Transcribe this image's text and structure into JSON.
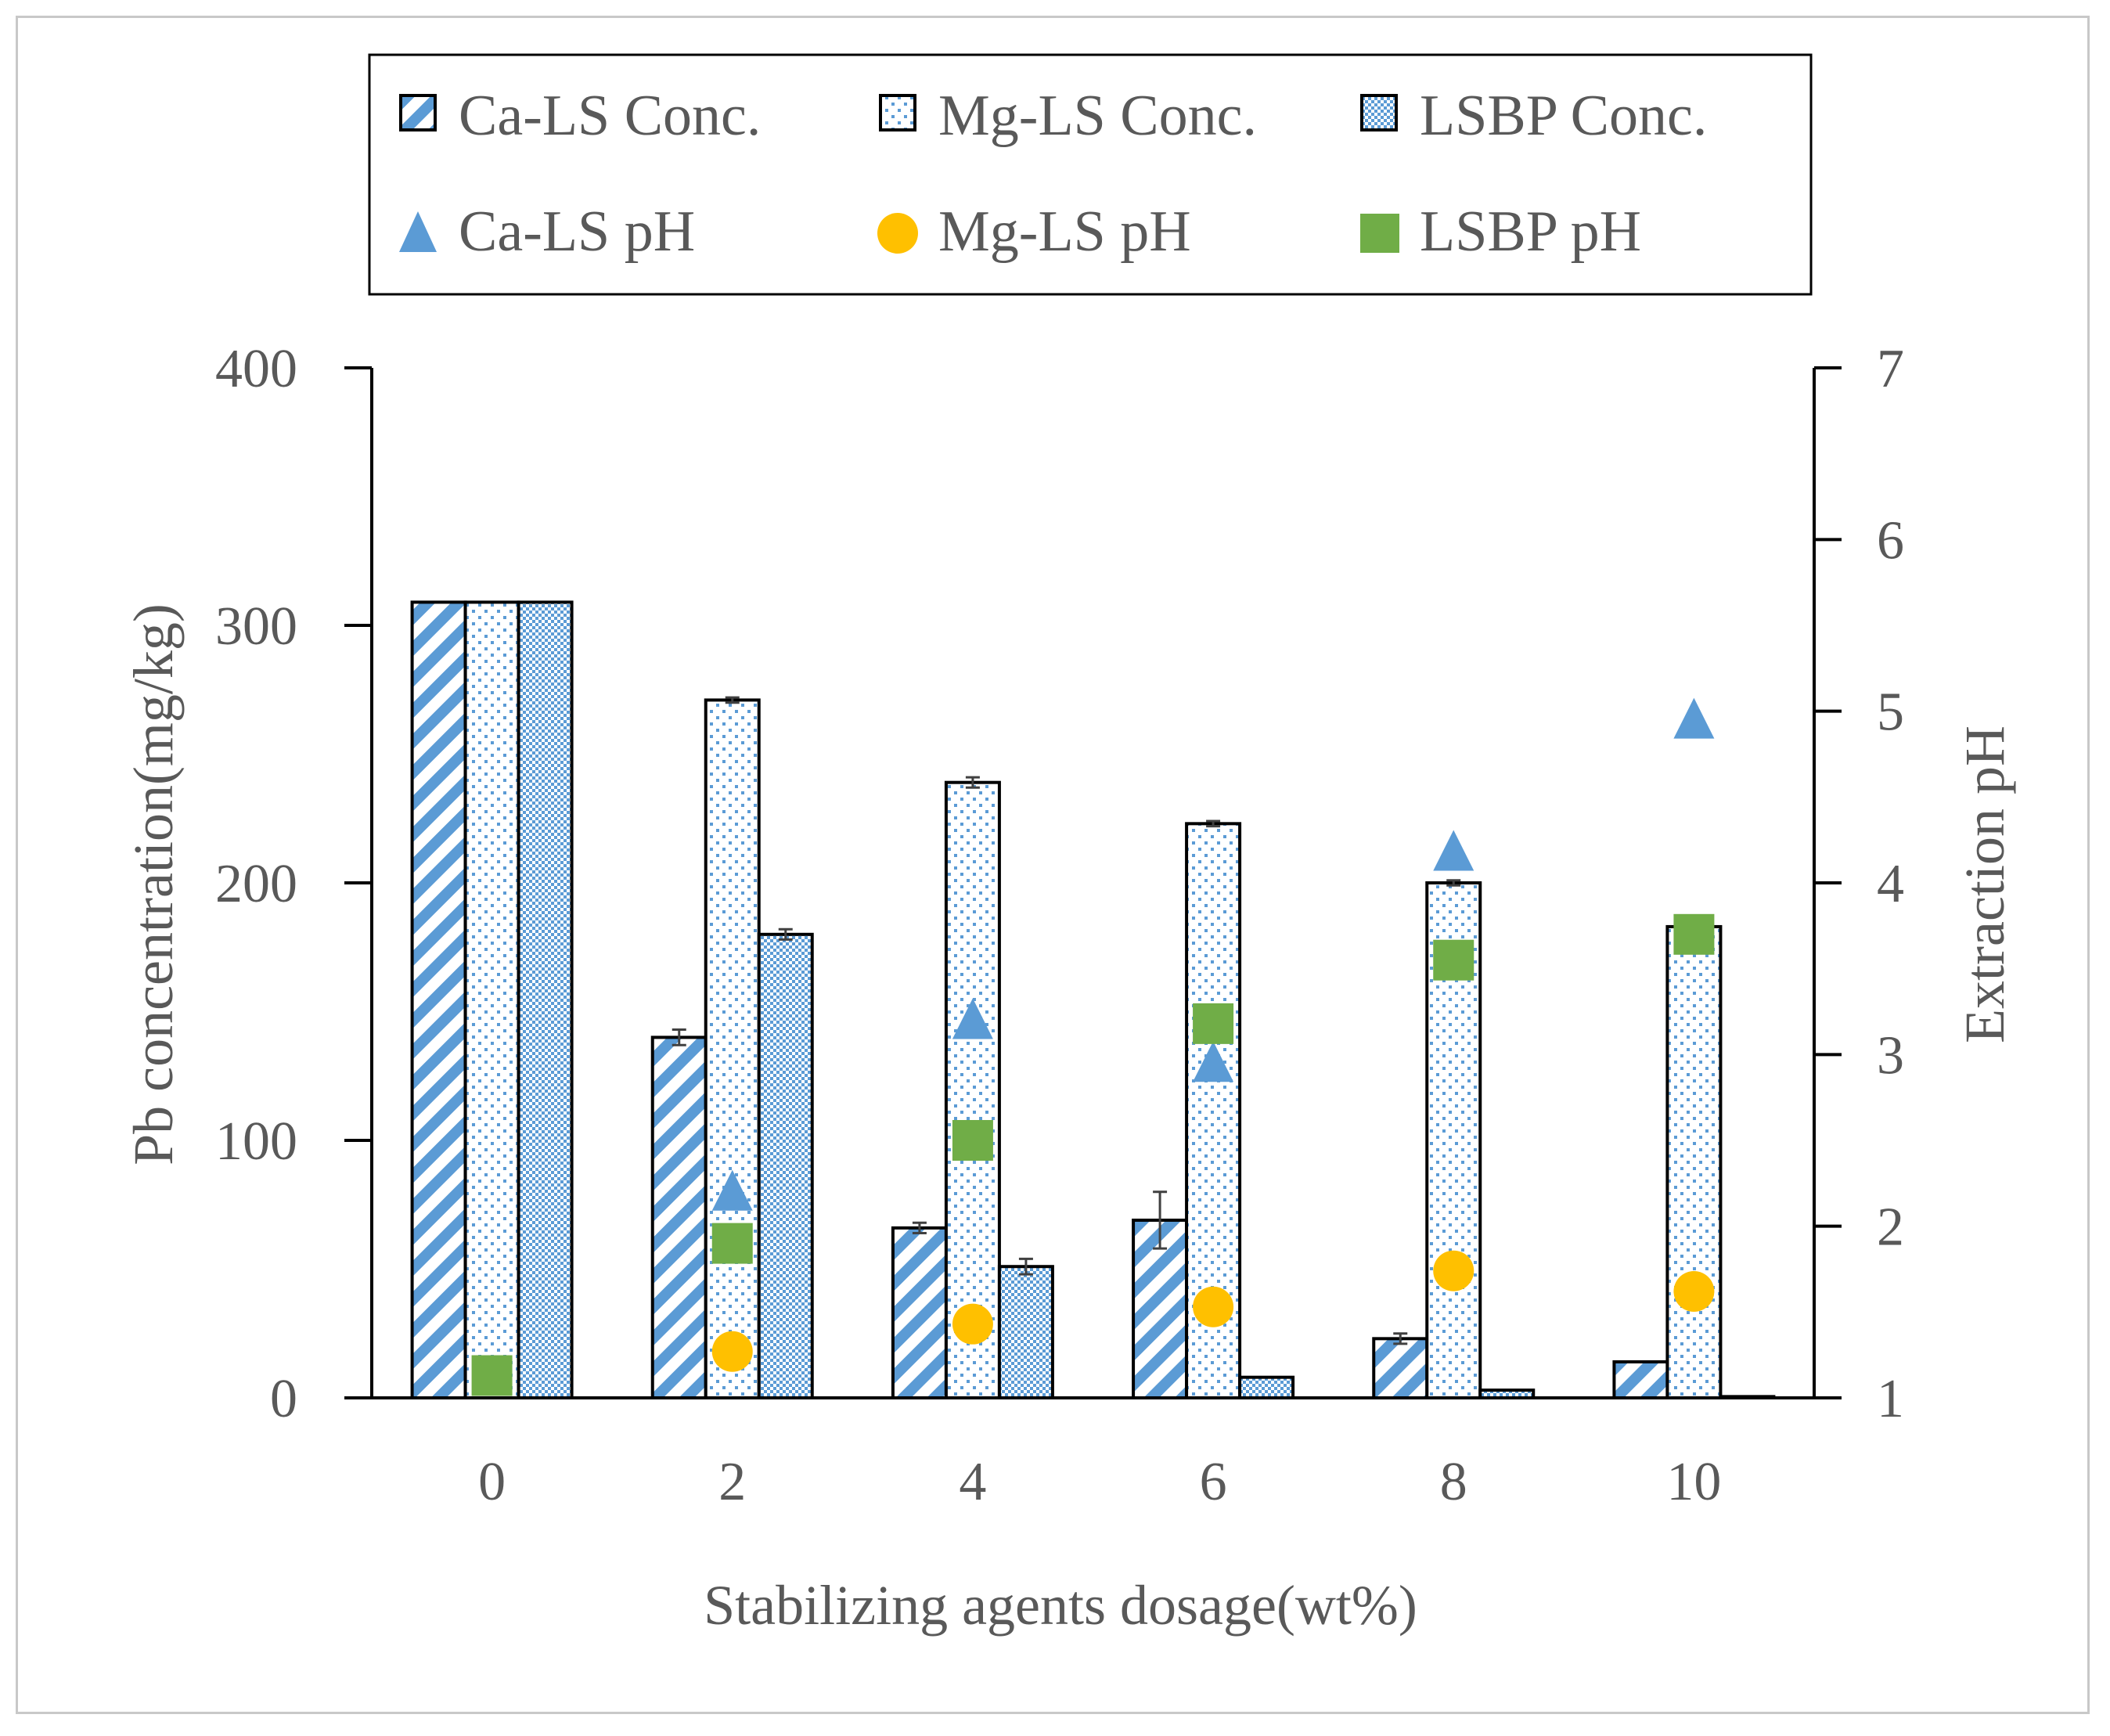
{
  "chart_data": {
    "type": "bar",
    "title": "",
    "xlabel": "Stabilizing agents dosage(wt%)",
    "ylabel": "Pb concentration(mg/kg)",
    "y2label": "Extraction pH",
    "categories": [
      "0",
      "2",
      "4",
      "6",
      "8",
      "10"
    ],
    "ylim": [
      0,
      400
    ],
    "yticks": [
      "0",
      "100",
      "200",
      "300",
      "400"
    ],
    "y2lim": [
      1,
      7
    ],
    "y2ticks": [
      "1",
      "2",
      "3",
      "4",
      "5",
      "6",
      "7"
    ],
    "legend_position": "top",
    "bar_series": [
      {
        "name": "Ca-LS Conc.",
        "pattern": "diagonal",
        "values": [
          309,
          140,
          66,
          69,
          23,
          14
        ],
        "errors": [
          0,
          3,
          2,
          11,
          2,
          0
        ]
      },
      {
        "name": "Mg-LS Conc.",
        "pattern": "dots",
        "values": [
          309,
          271,
          239,
          223,
          200,
          183
        ],
        "errors": [
          0,
          1,
          2,
          1,
          1,
          1
        ]
      },
      {
        "name": "LSBP Conc.",
        "pattern": "checker",
        "values": [
          309,
          180,
          51,
          8,
          3,
          0.5
        ],
        "errors": [
          0,
          2,
          3,
          0,
          0,
          0
        ]
      }
    ],
    "ph_series": [
      {
        "name": "Ca-LS pH",
        "marker": "triangle",
        "color": "#5B9BD5",
        "x": [
          2,
          4,
          6,
          8,
          10
        ],
        "values": [
          2.2,
          3.2,
          2.95,
          4.18,
          4.95
        ]
      },
      {
        "name": "Mg-LS pH",
        "marker": "circle",
        "color": "#FFC000",
        "x": [
          2,
          4,
          6,
          8,
          10
        ],
        "values": [
          1.27,
          1.43,
          1.53,
          1.74,
          1.62
        ]
      },
      {
        "name": "LSBP pH",
        "marker": "square",
        "color": "#70AD47",
        "x": [
          0,
          2,
          4,
          6,
          8,
          10
        ],
        "values": [
          1.13,
          1.9,
          2.5,
          3.18,
          3.55,
          3.7
        ]
      }
    ],
    "legend": [
      "Ca-LS Conc.",
      "Mg-LS Conc.",
      "LSBP Conc.",
      "Ca-LS pH",
      "Mg-LS pH",
      "LSBP pH"
    ]
  },
  "colors": {
    "bar_blue": "#5B9BD5",
    "axis": "#000000",
    "text": "#595959"
  }
}
